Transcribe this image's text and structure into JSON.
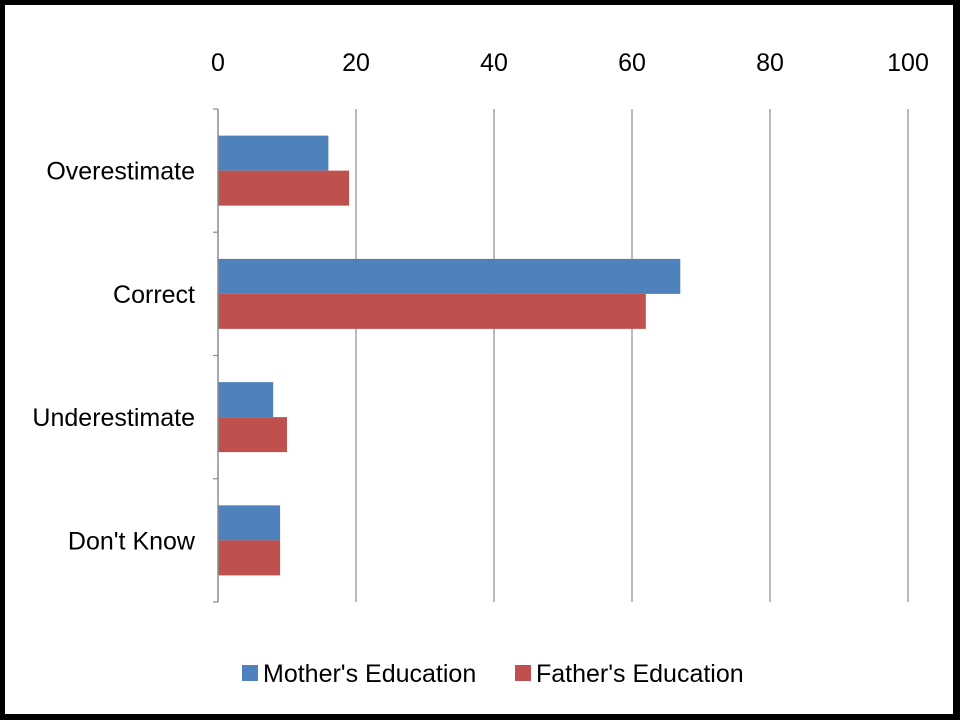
{
  "chart_data": {
    "type": "bar",
    "orientation": "horizontal",
    "categories": [
      "Overestimate",
      "Correct",
      "Underestimate",
      "Don't Know"
    ],
    "series": [
      {
        "name": "Mother's Education",
        "values": [
          16,
          67,
          8,
          9
        ],
        "color": "#4F81BD"
      },
      {
        "name": "Father's Education",
        "values": [
          19,
          62,
          10,
          9
        ],
        "color": "#C0504D"
      }
    ],
    "xlim": [
      0,
      100
    ],
    "x_ticks": [
      0,
      20,
      40,
      60,
      80,
      100
    ],
    "x_axis_position": "top",
    "grid": true,
    "legend_position": "bottom"
  }
}
